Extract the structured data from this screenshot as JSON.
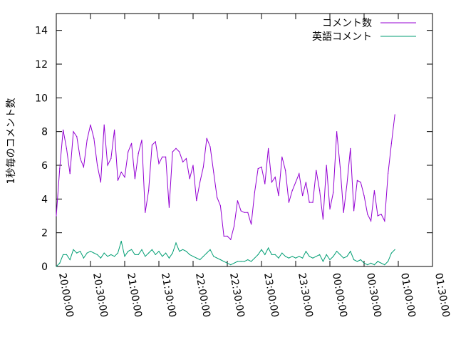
{
  "chart_data": {
    "type": "line",
    "title": "",
    "xlabel": "",
    "ylabel": "1秒毎のコメント数",
    "ylim": [
      0,
      15
    ],
    "xlim": [
      "20:00:00",
      "01:30:00"
    ],
    "yticks": [
      "0",
      "2",
      "4",
      "6",
      "8",
      "10",
      "12",
      "14"
    ],
    "xticks": [
      "20:00:00",
      "20:30:00",
      "21:00:00",
      "21:30:00",
      "22:00:00",
      "22:30:00",
      "23:00:00",
      "23:30:00",
      "00:00:00",
      "00:30:00",
      "01:00:00",
      "01:30:00"
    ],
    "grid": false,
    "legend": "top-right",
    "series": [
      {
        "name": "コメント数",
        "color": "#9400d3",
        "times": [
          "20:00:00",
          "20:03:00",
          "20:06:00",
          "20:09:00",
          "20:12:00",
          "20:15:00",
          "20:18:00",
          "20:21:00",
          "20:24:00",
          "20:27:00",
          "20:30:00",
          "20:33:00",
          "20:36:00",
          "20:39:00",
          "20:42:00",
          "20:45:00",
          "20:48:00",
          "20:51:00",
          "20:54:00",
          "20:57:00",
          "21:00:00",
          "21:03:00",
          "21:06:00",
          "21:09:00",
          "21:12:00",
          "21:15:00",
          "21:18:00",
          "21:21:00",
          "21:24:00",
          "21:27:00",
          "21:30:00",
          "21:33:00",
          "21:36:00",
          "21:39:00",
          "21:42:00",
          "21:45:00",
          "21:48:00",
          "21:51:00",
          "21:54:00",
          "21:57:00",
          "22:00:00",
          "22:03:00",
          "22:06:00",
          "22:09:00",
          "22:12:00",
          "22:15:00",
          "22:18:00",
          "22:21:00",
          "22:24:00",
          "22:27:00",
          "22:30:00",
          "22:33:00",
          "22:36:00",
          "22:39:00",
          "22:42:00",
          "22:45:00",
          "22:48:00",
          "22:51:00",
          "22:54:00",
          "22:57:00",
          "23:00:00",
          "23:03:00",
          "23:06:00",
          "23:09:00",
          "23:12:00",
          "23:15:00",
          "23:18:00",
          "23:21:00",
          "23:24:00",
          "23:27:00",
          "23:30:00",
          "23:33:00",
          "23:36:00",
          "23:39:00",
          "23:42:00",
          "23:45:00",
          "23:48:00",
          "23:51:00",
          "23:54:00",
          "23:57:00",
          "00:00:00",
          "00:03:00",
          "00:06:00",
          "00:09:00",
          "00:12:00",
          "00:15:00",
          "00:18:00",
          "00:21:00",
          "00:24:00",
          "00:27:00",
          "00:30:00",
          "00:33:00",
          "00:36:00",
          "00:39:00",
          "00:42:00",
          "00:45:00",
          "00:48:00",
          "00:51:00",
          "00:54:00",
          "00:57:00"
        ],
        "values": [
          3.0,
          5.8,
          8.1,
          7.0,
          5.5,
          8.0,
          7.7,
          6.4,
          5.9,
          7.5,
          8.4,
          7.6,
          6.0,
          5.0,
          8.4,
          6.0,
          6.4,
          8.1,
          5.1,
          5.6,
          5.3,
          6.8,
          7.3,
          5.2,
          6.7,
          7.5,
          3.2,
          4.5,
          7.2,
          7.4,
          6.1,
          6.5,
          6.5,
          3.5,
          6.8,
          7.0,
          6.8,
          6.2,
          6.4,
          5.2,
          6.0,
          3.9,
          5.0,
          5.9,
          7.6,
          7.1,
          5.6,
          4.1,
          3.6,
          1.8,
          1.8,
          1.6,
          2.4,
          3.9,
          3.3,
          3.2,
          3.2,
          2.5,
          4.4,
          5.8,
          5.9,
          4.9,
          7.0,
          5.0,
          5.3,
          4.2,
          6.5,
          5.7,
          3.8,
          4.5,
          5.0,
          5.5,
          4.2,
          5.0,
          3.8,
          3.8,
          5.7,
          4.5,
          2.8,
          6.0,
          3.4,
          4.4,
          8.0,
          5.9,
          3.2,
          4.9,
          7.0,
          3.3,
          5.1,
          5.0,
          4.2,
          3.1,
          2.7,
          4.5,
          3.0,
          3.1,
          2.7,
          5.5,
          7.3,
          9.0
        ]
      },
      {
        "name": "英語コメント",
        "color": "#009e73",
        "times": [
          "20:00:00",
          "20:03:00",
          "20:06:00",
          "20:09:00",
          "20:12:00",
          "20:15:00",
          "20:18:00",
          "20:21:00",
          "20:24:00",
          "20:27:00",
          "20:30:00",
          "20:33:00",
          "20:36:00",
          "20:39:00",
          "20:42:00",
          "20:45:00",
          "20:48:00",
          "20:51:00",
          "20:54:00",
          "20:57:00",
          "21:00:00",
          "21:03:00",
          "21:06:00",
          "21:09:00",
          "21:12:00",
          "21:15:00",
          "21:18:00",
          "21:21:00",
          "21:24:00",
          "21:27:00",
          "21:30:00",
          "21:33:00",
          "21:36:00",
          "21:39:00",
          "21:42:00",
          "21:45:00",
          "21:48:00",
          "21:51:00",
          "21:54:00",
          "21:57:00",
          "22:00:00",
          "22:03:00",
          "22:06:00",
          "22:09:00",
          "22:12:00",
          "22:15:00",
          "22:18:00",
          "22:21:00",
          "22:24:00",
          "22:27:00",
          "22:30:00",
          "22:33:00",
          "22:36:00",
          "22:39:00",
          "22:42:00",
          "22:45:00",
          "22:48:00",
          "22:51:00",
          "22:54:00",
          "22:57:00",
          "23:00:00",
          "23:03:00",
          "23:06:00",
          "23:09:00",
          "23:12:00",
          "23:15:00",
          "23:18:00",
          "23:21:00",
          "23:24:00",
          "23:27:00",
          "23:30:00",
          "23:33:00",
          "23:36:00",
          "23:39:00",
          "23:42:00",
          "23:45:00",
          "23:48:00",
          "23:51:00",
          "23:54:00",
          "23:57:00",
          "00:00:00",
          "00:03:00",
          "00:06:00",
          "00:09:00",
          "00:12:00",
          "00:15:00",
          "00:18:00",
          "00:21:00",
          "00:24:00",
          "00:27:00",
          "00:30:00",
          "00:33:00",
          "00:36:00",
          "00:39:00",
          "00:42:00",
          "00:45:00",
          "00:48:00",
          "00:51:00",
          "00:54:00",
          "00:57:00"
        ],
        "values": [
          0.0,
          0.2,
          0.7,
          0.7,
          0.4,
          1.0,
          0.8,
          0.9,
          0.5,
          0.8,
          0.9,
          0.8,
          0.7,
          0.5,
          0.8,
          0.6,
          0.7,
          0.6,
          0.8,
          1.5,
          0.6,
          0.9,
          1.0,
          0.7,
          0.7,
          1.0,
          0.6,
          0.8,
          1.0,
          0.7,
          0.9,
          0.6,
          0.8,
          0.5,
          0.8,
          1.4,
          0.9,
          1.0,
          0.9,
          0.7,
          0.6,
          0.5,
          0.4,
          0.6,
          0.8,
          1.0,
          0.6,
          0.5,
          0.4,
          0.3,
          0.2,
          0.1,
          0.2,
          0.3,
          0.3,
          0.3,
          0.4,
          0.3,
          0.5,
          0.7,
          1.0,
          0.7,
          1.1,
          0.7,
          0.7,
          0.5,
          0.8,
          0.6,
          0.5,
          0.6,
          0.5,
          0.6,
          0.5,
          0.9,
          0.6,
          0.5,
          0.6,
          0.7,
          0.3,
          0.7,
          0.4,
          0.6,
          0.9,
          0.7,
          0.5,
          0.6,
          0.9,
          0.4,
          0.3,
          0.4,
          0.2,
          0.1,
          0.2,
          0.1,
          0.3,
          0.2,
          0.1,
          0.3,
          0.8,
          1.0
        ]
      }
    ]
  }
}
